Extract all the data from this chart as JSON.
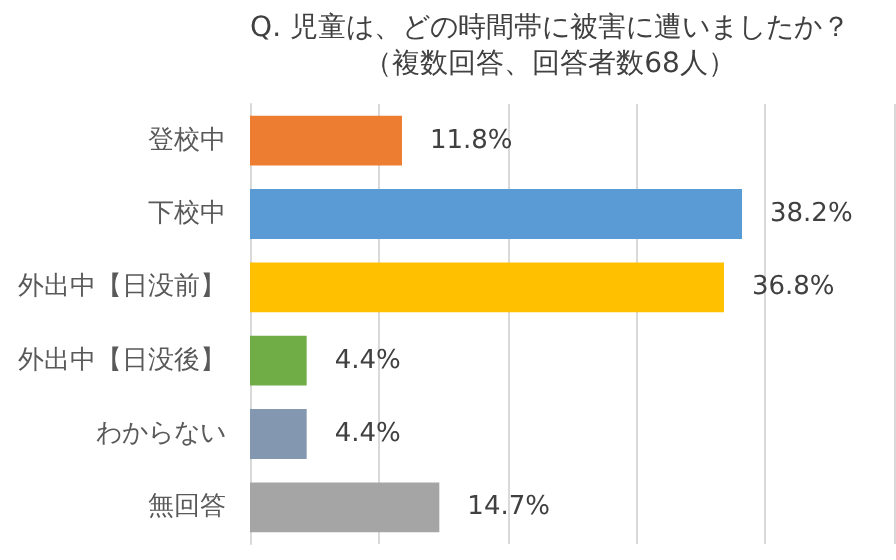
{
  "chart_data": {
    "type": "bar",
    "orientation": "horizontal",
    "title": "Q. 児童は、どの時間帯に被害に遭いましたか？",
    "subtitle": "（複数回答、回答者数68人）",
    "categories": [
      "登校中",
      "下校中",
      "外出中【日没前】",
      "外出中【日没後】",
      "わからない",
      "無回答"
    ],
    "values": [
      11.8,
      38.2,
      36.8,
      4.4,
      4.4,
      14.7
    ],
    "value_labels": [
      "11.8%",
      "38.2%",
      "36.8%",
      "4.4%",
      "4.4%",
      "14.7%"
    ],
    "colors": [
      "#ed7d31",
      "#5b9bd5",
      "#ffc000",
      "#70ad47",
      "#8497b0",
      "#a5a5a5"
    ],
    "xlim": [
      0,
      50
    ],
    "xticks": [
      {
        "value": 0,
        "label": null
      },
      {
        "value": 10,
        "label": null
      },
      {
        "value": 20,
        "label": null
      },
      {
        "value": 30,
        "label": null
      },
      {
        "value": 40,
        "label": null
      },
      {
        "value": 50,
        "label": null
      }
    ],
    "grid": "x",
    "tick_labels": "y"
  }
}
